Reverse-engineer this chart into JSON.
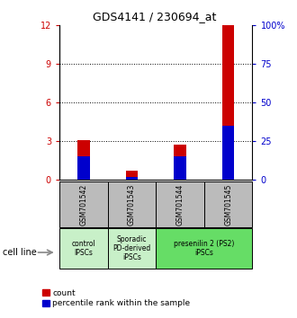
{
  "title": "GDS4141 / 230694_at",
  "samples": [
    "GSM701542",
    "GSM701543",
    "GSM701544",
    "GSM701545"
  ],
  "red_counts": [
    3.1,
    0.7,
    2.7,
    12.0
  ],
  "blue_percentile": [
    15.0,
    1.5,
    15.0,
    35.0
  ],
  "ylim_left": [
    0,
    12
  ],
  "ylim_right": [
    0,
    100
  ],
  "yticks_left": [
    0,
    3,
    6,
    9,
    12
  ],
  "yticks_right": [
    0,
    25,
    50,
    75,
    100
  ],
  "ytick_labels_right": [
    "0",
    "25",
    "50",
    "75",
    "100%"
  ],
  "cell_line_label": "cell line",
  "legend_red": "count",
  "legend_blue": "percentile rank within the sample",
  "bar_color_red": "#cc0000",
  "bar_color_blue": "#0000cc",
  "bar_width": 0.25,
  "label_box_color": "#bbbbbb",
  "group_configs": [
    {
      "span": [
        0,
        1
      ],
      "label": "control\nIPSCs",
      "color": "#c8f0c8"
    },
    {
      "span": [
        1,
        2
      ],
      "label": "Sporadic\nPD-derived\niPSCs",
      "color": "#c8f0c8"
    },
    {
      "span": [
        2,
        4
      ],
      "label": "presenilin 2 (PS2)\niPSCs",
      "color": "#66dd66"
    }
  ]
}
